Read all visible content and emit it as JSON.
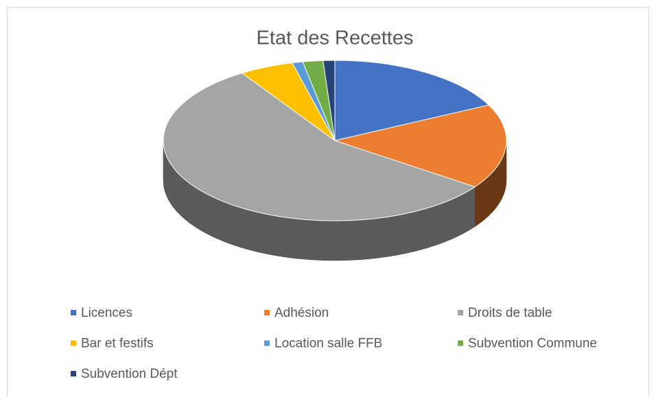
{
  "chart_data": {
    "type": "pie3d",
    "title": "Etat des Recettes",
    "categories": [
      "Licences",
      "Adhésion",
      "Droits de table",
      "Bar et festifs",
      "Location salle FFB",
      "Subvention Commune",
      "Subvention Dépt"
    ],
    "values": [
      17.7,
      17.1,
      56.1,
      5.1,
      1.0,
      1.9,
      1.1
    ],
    "colors": [
      "#4472c4",
      "#ed7d31",
      "#a5a5a5",
      "#ffc000",
      "#5b9bd5",
      "#70ad47",
      "#264478"
    ],
    "legend": "bottom"
  }
}
